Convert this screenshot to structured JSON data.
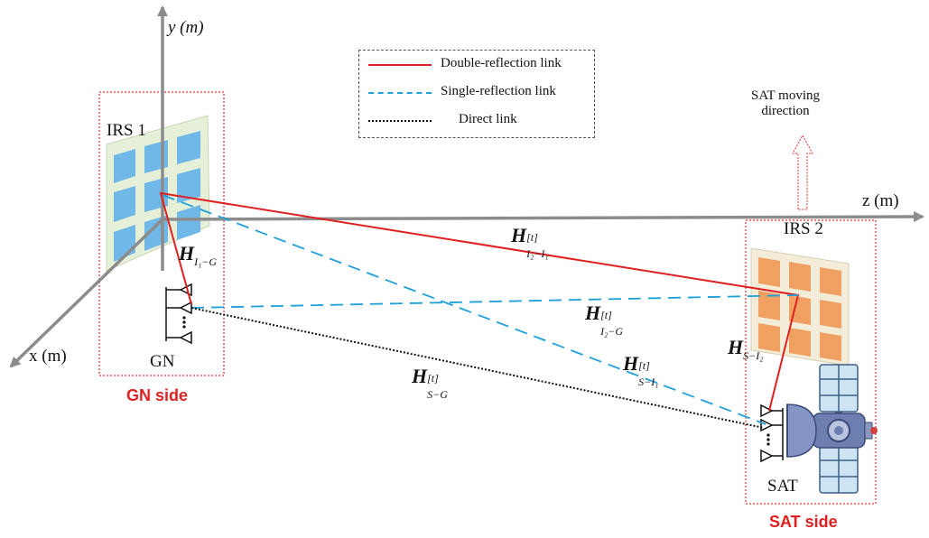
{
  "axes": {
    "y_label": "y (m)",
    "x_label": "x (m)",
    "z_label": "z (m)"
  },
  "legend": {
    "items": [
      {
        "label": "Double-reflection link",
        "color": "#e02020",
        "style": "solid"
      },
      {
        "label": "Single-reflection link",
        "color": "#1ea0d8",
        "style": "dashed"
      },
      {
        "label": "Direct link",
        "color": "#111111",
        "style": "dotted"
      }
    ]
  },
  "nodes": {
    "irs1": "IRS 1",
    "irs2": "IRS 2",
    "gn": "GN",
    "sat": "SAT"
  },
  "sides": {
    "gn_side": "GN side",
    "sat_side": "SAT side"
  },
  "annotation": {
    "moving_line1": "SAT moving",
    "moving_line2": "direction"
  },
  "channels": {
    "h_i1g": {
      "base": "H",
      "sub": "I₁−G"
    },
    "h_i2i1": {
      "base": "H",
      "sup": "[t]",
      "sub": "I₂−I₁"
    },
    "h_i2g": {
      "base": "H",
      "sup": "[t]",
      "sub": "I₂−G"
    },
    "h_si1": {
      "base": "H",
      "sup": "[t]",
      "sub": "S−I₁"
    },
    "h_sg": {
      "base": "H",
      "sup": "[t]",
      "sub": "S−G"
    },
    "h_si2": {
      "base": "H",
      "sub": "S−I₂"
    }
  },
  "colors": {
    "axis": "#8c8c8c",
    "double": "#e02020",
    "single": "#1ea0d8",
    "direct": "#111111",
    "irs1_panel": "#e6f0d8",
    "irs1_tile": "#6fb8e8",
    "irs2_panel": "#f2ecd8",
    "irs2_tile": "#f0a060",
    "side_box": "#e03030"
  }
}
